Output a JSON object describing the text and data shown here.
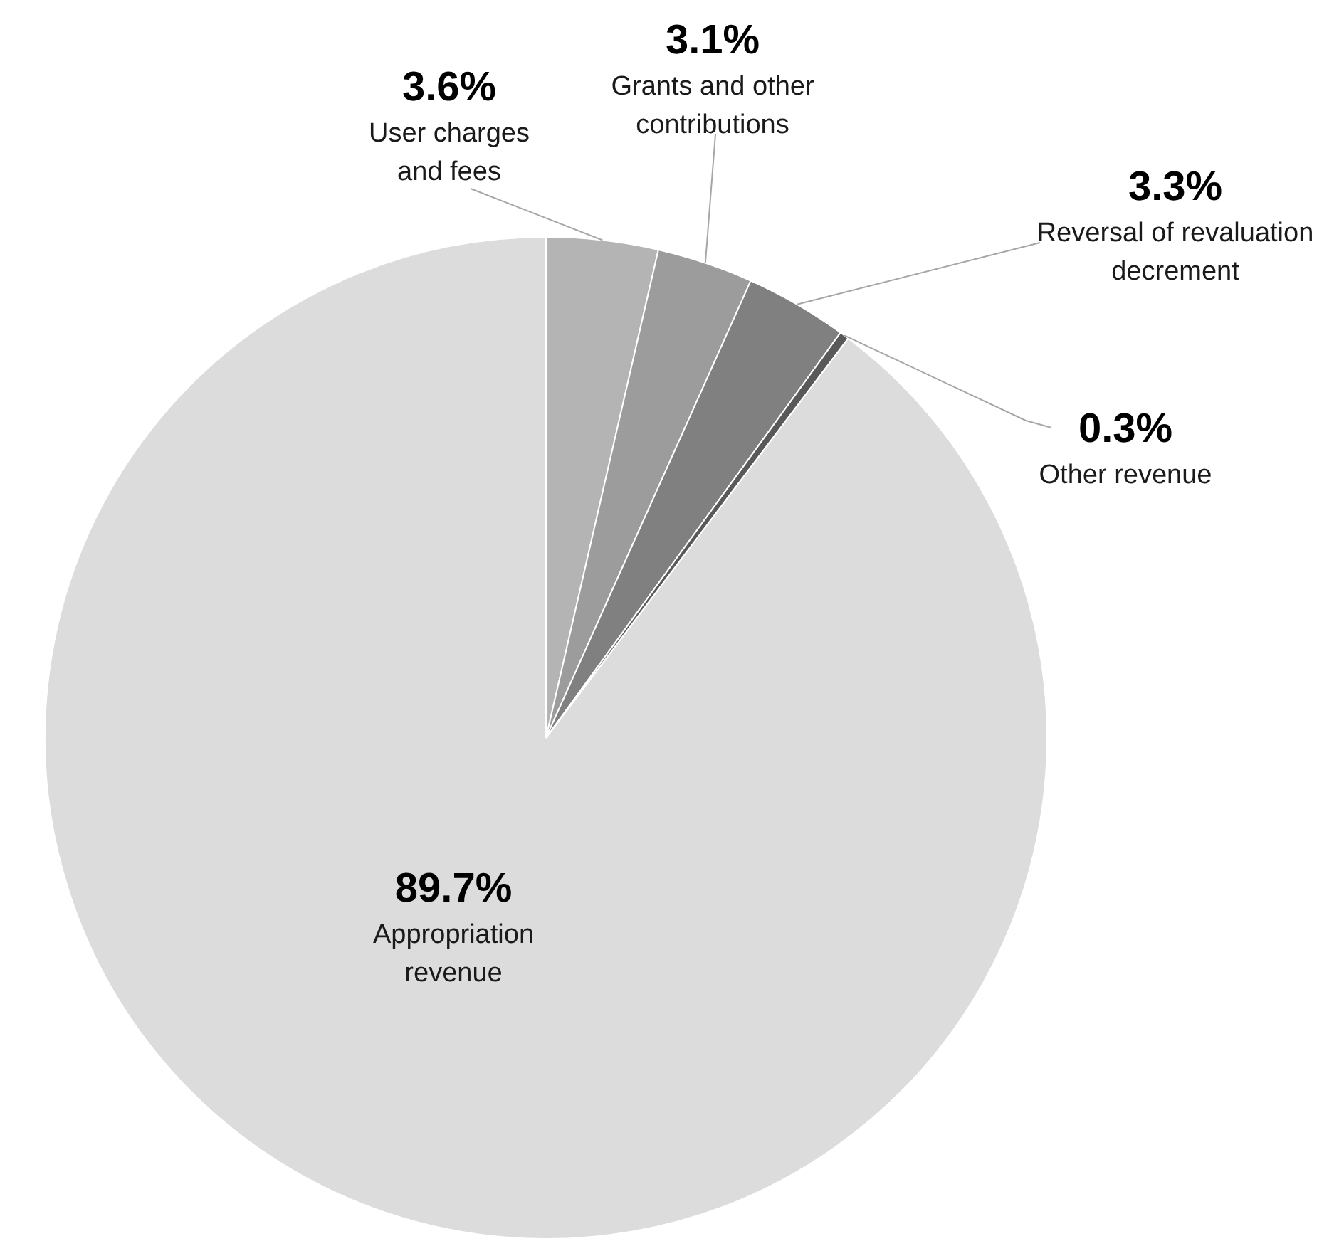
{
  "chart_data": {
    "type": "pie",
    "categories": [
      "Appropriation revenue",
      "User charges and fees",
      "Grants and other contributions",
      "Reversal of revaluation decrement",
      "Other revenue"
    ],
    "values": [
      89.7,
      3.6,
      3.1,
      3.3,
      0.3
    ],
    "colors": [
      "#dcdcdc",
      "#b4b4b4",
      "#9c9c9c",
      "#808080",
      "#595959"
    ],
    "value_labels": [
      "89.7%",
      "3.6%",
      "3.1%",
      "3.3%",
      "0.3%"
    ]
  }
}
